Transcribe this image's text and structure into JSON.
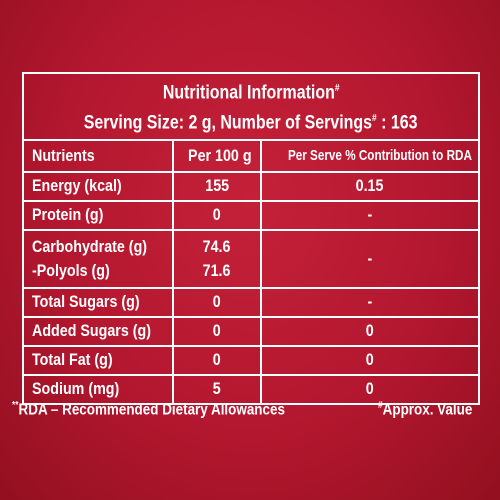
{
  "header": {
    "title": [
      "Nutritional Information",
      "#"
    ],
    "serving": [
      "Serving Size: 2 g, Number of Servings",
      "#",
      " : 163"
    ]
  },
  "columns": [
    "Nutrients",
    "Per 100 g",
    "Per Serve % Contribution to RDA"
  ],
  "rows": [
    {
      "nutrient": [
        "Energy (kcal)"
      ],
      "per100g": [
        155
      ],
      "rda": 0.15
    },
    {
      "nutrient": [
        "Protein (g)"
      ],
      "per100g": [
        0
      ],
      "rda": "-"
    },
    {
      "nutrient": [
        "Carbohydrate (g)",
        "-Polyols (g)"
      ],
      "per100g": [
        74.6,
        71.6
      ],
      "rda": "-"
    },
    {
      "nutrient": [
        "Total Sugars (g)"
      ],
      "per100g": [
        0
      ],
      "rda": "-"
    },
    {
      "nutrient": [
        "Added Sugars (g)"
      ],
      "per100g": [
        0
      ],
      "rda": 0
    },
    {
      "nutrient": [
        "Total Fat (g)"
      ],
      "per100g": [
        0
      ],
      "rda": 0
    },
    {
      "nutrient": [
        "Sodium (mg)"
      ],
      "per100g": [
        5
      ],
      "rda": 0
    }
  ],
  "footer": {
    "left": [
      "**",
      "RDA – Recommended Dietary Allowances"
    ],
    "right": [
      "#",
      "Approx. Value"
    ]
  }
}
